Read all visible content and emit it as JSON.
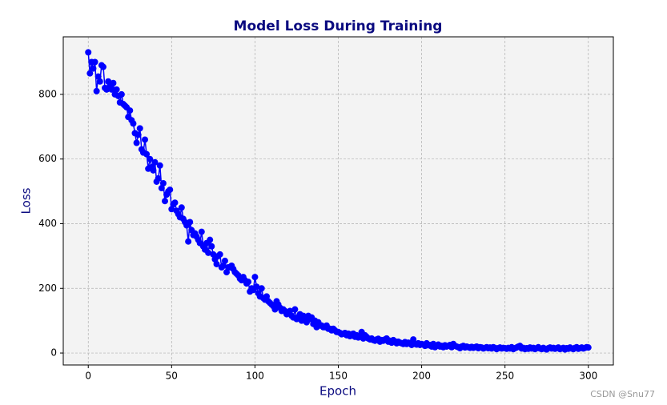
{
  "chart_data": {
    "type": "line",
    "title": "Model Loss During Training",
    "xlabel": "Epoch",
    "ylabel": "Loss",
    "watermark": "CSDN @Snu77",
    "color": "#0000ff",
    "grid": true,
    "markers": true,
    "xlim": [
      -15,
      315
    ],
    "ylim": [
      -37,
      978
    ],
    "xticks": [
      0,
      50,
      100,
      150,
      200,
      250,
      300
    ],
    "yticks": [
      0,
      200,
      400,
      600,
      800
    ],
    "x": [
      0,
      1,
      2,
      3,
      4,
      5,
      6,
      7,
      8,
      9,
      10,
      11,
      12,
      13,
      14,
      15,
      16,
      17,
      18,
      19,
      20,
      21,
      22,
      23,
      24,
      25,
      26,
      27,
      28,
      29,
      30,
      31,
      32,
      33,
      34,
      35,
      36,
      37,
      38,
      39,
      40,
      41,
      42,
      43,
      44,
      45,
      46,
      47,
      48,
      49,
      50,
      51,
      52,
      53,
      54,
      55,
      56,
      57,
      58,
      59,
      60,
      61,
      62,
      63,
      64,
      65,
      66,
      67,
      68,
      69,
      70,
      71,
      72,
      73,
      74,
      75,
      76,
      77,
      78,
      79,
      80,
      81,
      82,
      83,
      84,
      85,
      86,
      87,
      88,
      89,
      90,
      91,
      92,
      93,
      94,
      95,
      96,
      97,
      98,
      99,
      100,
      101,
      102,
      103,
      104,
      105,
      106,
      107,
      108,
      109,
      110,
      111,
      112,
      113,
      114,
      115,
      116,
      117,
      118,
      119,
      120,
      121,
      122,
      123,
      124,
      125,
      126,
      127,
      128,
      129,
      130,
      131,
      132,
      133,
      134,
      135,
      136,
      137,
      138,
      139,
      140,
      141,
      142,
      143,
      144,
      145,
      146,
      147,
      148,
      149,
      150,
      151,
      152,
      153,
      154,
      155,
      156,
      157,
      158,
      159,
      160,
      161,
      162,
      163,
      164,
      165,
      166,
      167,
      168,
      169,
      170,
      171,
      172,
      173,
      174,
      175,
      176,
      177,
      178,
      179,
      180,
      181,
      182,
      183,
      184,
      185,
      186,
      187,
      188,
      189,
      190,
      191,
      192,
      193,
      194,
      195,
      196,
      197,
      198,
      199,
      200,
      201,
      202,
      203,
      204,
      205,
      206,
      207,
      208,
      209,
      210,
      211,
      212,
      213,
      214,
      215,
      216,
      217,
      218,
      219,
      220,
      221,
      222,
      223,
      224,
      225,
      226,
      227,
      228,
      229,
      230,
      231,
      232,
      233,
      234,
      235,
      236,
      237,
      238,
      239,
      240,
      241,
      242,
      243,
      244,
      245,
      246,
      247,
      248,
      249,
      250,
      251,
      252,
      253,
      254,
      255,
      256,
      257,
      258,
      259,
      260,
      261,
      262,
      263,
      264,
      265,
      266,
      267,
      268,
      269,
      270,
      271,
      272,
      273,
      274,
      275,
      276,
      277,
      278,
      279,
      280,
      281,
      282,
      283,
      284,
      285,
      286,
      287,
      288,
      289,
      290,
      291,
      292,
      293,
      294,
      295,
      296,
      297,
      298,
      299,
      300
    ],
    "values": [
      930,
      865,
      900,
      880,
      900,
      810,
      855,
      840,
      890,
      885,
      820,
      815,
      840,
      825,
      815,
      835,
      800,
      815,
      795,
      775,
      800,
      770,
      765,
      760,
      730,
      750,
      720,
      710,
      680,
      650,
      675,
      695,
      630,
      620,
      660,
      615,
      570,
      600,
      575,
      565,
      590,
      530,
      540,
      580,
      510,
      525,
      470,
      490,
      500,
      505,
      445,
      460,
      465,
      440,
      430,
      420,
      450,
      415,
      405,
      395,
      345,
      405,
      380,
      365,
      370,
      360,
      350,
      340,
      375,
      330,
      320,
      340,
      310,
      350,
      330,
      305,
      290,
      275,
      300,
      305,
      265,
      270,
      285,
      250,
      265,
      265,
      270,
      260,
      250,
      245,
      240,
      230,
      225,
      235,
      225,
      215,
      220,
      190,
      200,
      195,
      235,
      205,
      185,
      175,
      200,
      170,
      165,
      175,
      160,
      155,
      150,
      145,
      135,
      160,
      150,
      140,
      130,
      135,
      130,
      120,
      125,
      130,
      115,
      110,
      135,
      105,
      110,
      120,
      100,
      115,
      100,
      95,
      115,
      105,
      110,
      90,
      100,
      80,
      95,
      85,
      85,
      80,
      80,
      85,
      75,
      75,
      70,
      75,
      70,
      65,
      65,
      62,
      58,
      60,
      62,
      55,
      60,
      52,
      58,
      60,
      50,
      55,
      48,
      52,
      65,
      45,
      55,
      50,
      45,
      42,
      45,
      40,
      38,
      42,
      44,
      35,
      40,
      38,
      42,
      45,
      35,
      38,
      32,
      40,
      36,
      30,
      35,
      32,
      30,
      28,
      34,
      28,
      32,
      30,
      25,
      42,
      28,
      26,
      30,
      25,
      28,
      26,
      22,
      30,
      24,
      25,
      20,
      28,
      18,
      22,
      26,
      20,
      22,
      18,
      24,
      20,
      22,
      25,
      18,
      28,
      22,
      20,
      18,
      15,
      20,
      22,
      17,
      20,
      18,
      16,
      19,
      16,
      18,
      20,
      15,
      18,
      17,
      14,
      16,
      18,
      15,
      17,
      14,
      18,
      16,
      12,
      15,
      17,
      14,
      16,
      15,
      13,
      16,
      14,
      18,
      12,
      15,
      17,
      20,
      22,
      14,
      16,
      12,
      15,
      13,
      17,
      14,
      16,
      12,
      15,
      18,
      14,
      12,
      16,
      13,
      11,
      15,
      17,
      14,
      16,
      13,
      15,
      17,
      12,
      14,
      16,
      11,
      15,
      13,
      17,
      14,
      12,
      16,
      18,
      13,
      15,
      17,
      14,
      16,
      18,
      17
    ]
  }
}
